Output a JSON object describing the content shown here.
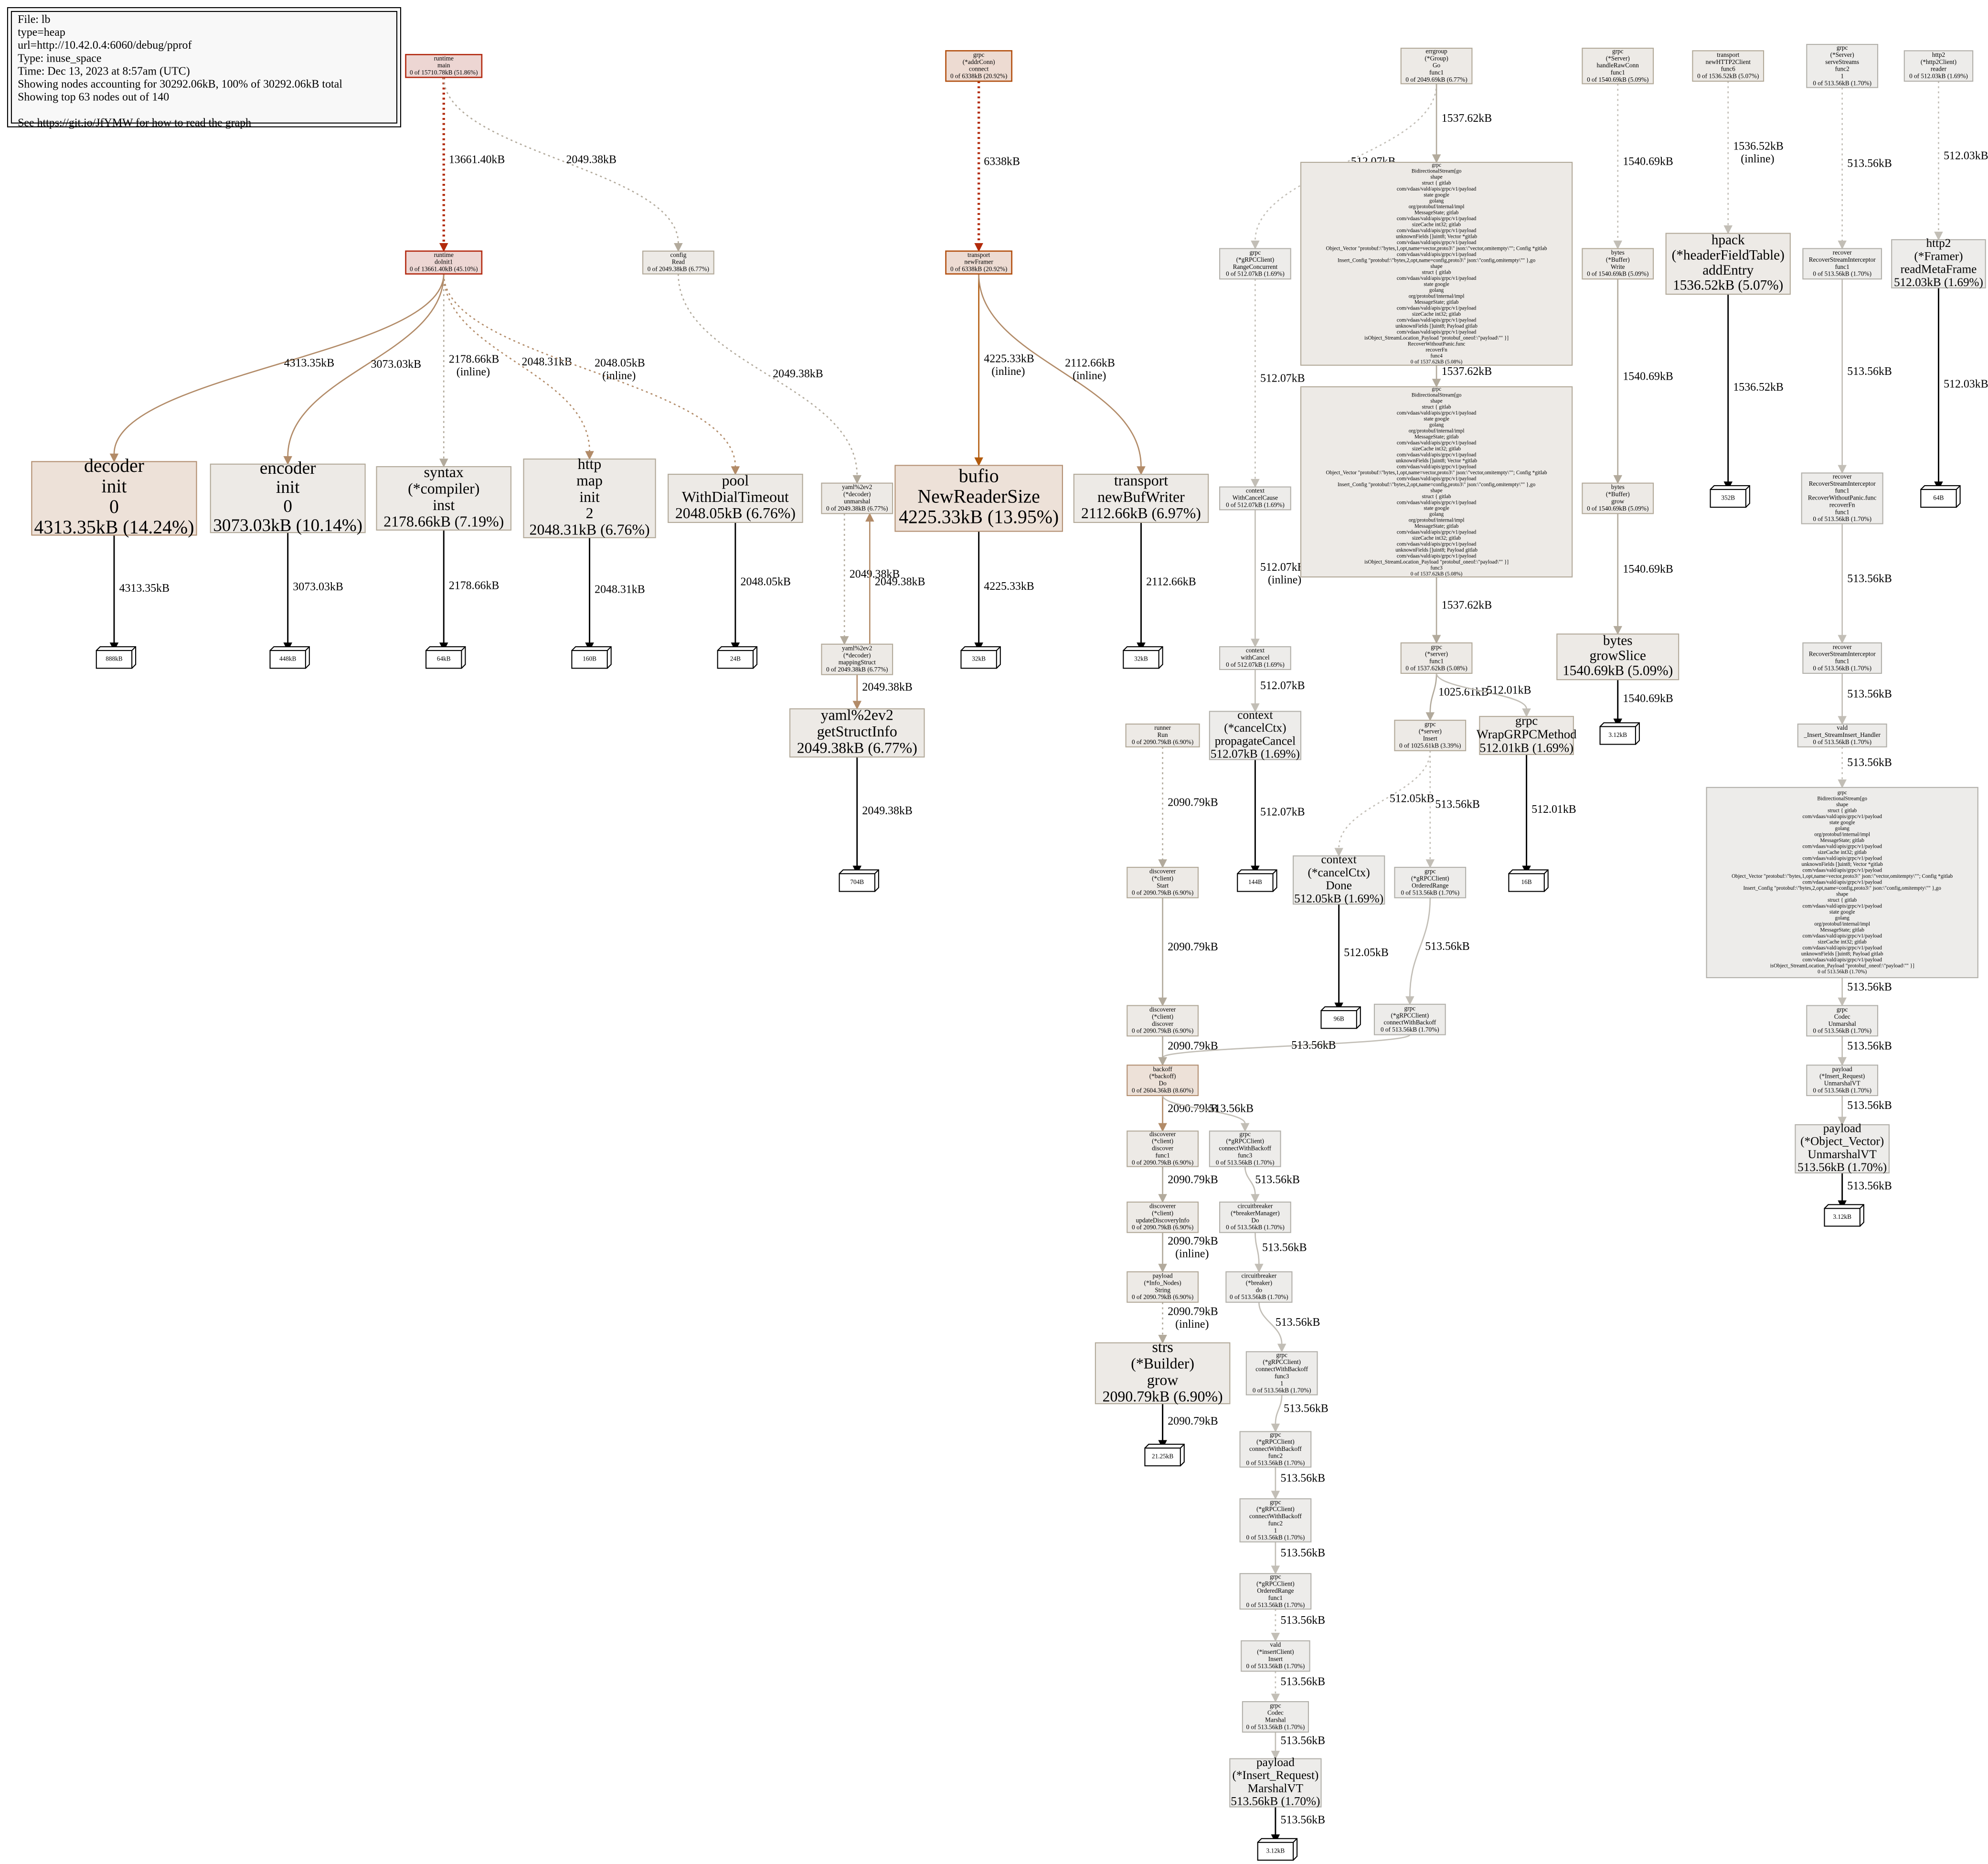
{
  "legend": {
    "lines": [
      "File: lb",
      "type=heap",
      "url=http://10.42.0.4:6060/debug/pprof",
      "Type: inuse_space",
      "Time: Dec 13, 2023 at 8:57am (UTC)",
      "Showing nodes accounting for 30292.06kB, 100% of 30292.06kB total",
      "Showing top 63 nodes out of 140",
      "See https://git.io/JfYMW for how to read the graph"
    ]
  },
  "nodes": [
    {
      "lines": [
        "runtime",
        "main",
        "0 of 15710.78kB (51.86%)"
      ]
    },
    {
      "lines": [
        "runtime",
        "doInit1",
        "0 of 13661.40kB (45.10%)"
      ]
    },
    {
      "lines": [
        "config",
        "Read",
        "0 of 2049.38kB (6.77%)"
      ]
    },
    {
      "lines": [
        "grpc",
        "(*addrConn)",
        "connect",
        "0 of 6338kB (20.92%)"
      ]
    },
    {
      "lines": [
        "transport",
        "newFramer",
        "0 of 6338kB (20.92%)"
      ]
    },
    {
      "lines": [
        "decoder",
        "init",
        "0",
        "4313.35kB (14.24%)"
      ]
    },
    {
      "lines": [
        "encoder",
        "init",
        "0",
        "3073.03kB (10.14%)"
      ]
    },
    {
      "lines": [
        "syntax",
        "(*compiler)",
        "inst",
        "2178.66kB (7.19%)"
      ]
    },
    {
      "lines": [
        "http",
        "map",
        "init",
        "2",
        "2048.31kB (6.76%)"
      ]
    },
    {
      "lines": [
        "pool",
        "WithDialTimeout",
        "2048.05kB (6.76%)"
      ]
    },
    {
      "lines": [
        "yaml%2ev2",
        "(*decoder)",
        "unmarshal",
        "0 of 2049.38kB (6.77%)"
      ]
    },
    {
      "lines": [
        "bufio",
        "NewReaderSize",
        "4225.33kB (13.95%)"
      ]
    },
    {
      "lines": [
        "transport",
        "newBufWriter",
        "2112.66kB (6.97%)"
      ]
    },
    {
      "lines": [
        "888kB"
      ]
    },
    {
      "lines": [
        "448kB"
      ]
    },
    {
      "lines": [
        "64kB"
      ]
    },
    {
      "lines": [
        "160B"
      ]
    },
    {
      "lines": [
        "24B"
      ]
    },
    {
      "lines": [
        "32kB"
      ]
    },
    {
      "lines": [
        "32kB"
      ]
    },
    {
      "lines": [
        "yaml%2ev2",
        "(*decoder)",
        "mappingStruct",
        "0 of 2049.38kB (6.77%)"
      ]
    },
    {
      "lines": [
        "yaml%2ev2",
        "getStructInfo",
        "2049.38kB (6.77%)"
      ]
    },
    {
      "lines": [
        "704B"
      ]
    },
    {
      "lines": [
        "errgroup",
        "(*Group)",
        "Go",
        "func1",
        "0 of 2049.69kB (6.77%)"
      ]
    },
    {
      "lines": [
        "grpc",
        "BidirectionalStream[go",
        "shape",
        "struct { gitlab",
        "com/vdaas/vald/apis/grpc/v1/payload",
        "state google",
        "golang",
        "org/protobuf/internal/impl",
        "MessageState; gitlab",
        "com/vdaas/vald/apis/grpc/v1/payload",
        "sizeCache int32; gitlab",
        "com/vdaas/vald/apis/grpc/v1/payload",
        "unknownFields []uint8; Vector *gitlab",
        "com/vdaas/vald/apis/grpc/v1/payload",
        "Object_Vector \"protobuf:\\\"bytes,1,opt,name=vector,proto3\\\" json:\\\"vector,omitempty\\\"\"; Config *gitlab",
        "com/vdaas/vald/apis/grpc/v1/payload",
        "Insert_Config \"protobuf:\\\"bytes,2,opt,name=config,proto3\\\" json:\\\"config,omitempty\\\"\" },go",
        "shape",
        "struct { gitlab",
        "com/vdaas/vald/apis/grpc/v1/payload",
        "state google",
        "golang",
        "org/protobuf/internal/impl",
        "MessageState; gitlab",
        "com/vdaas/vald/apis/grpc/v1/payload",
        "sizeCache int32; gitlab",
        "com/vdaas/vald/apis/grpc/v1/payload",
        "unknownFields []uint8; Payload gitlab",
        "com/vdaas/vald/apis/grpc/v1/payload",
        "isObject_StreamLocation_Payload \"protobuf_oneof:\\\"payload\\\"\" }]",
        "RecoverWithoutPanic.func",
        "recoverFn",
        "func4",
        "0 of 1537.62kB (5.08%)"
      ]
    },
    {
      "lines": [
        "grpc",
        "BidirectionalStream[go",
        "shape",
        "struct { gitlab",
        "com/vdaas/vald/apis/grpc/v1/payload",
        "state google",
        "golang",
        "org/protobuf/internal/impl",
        "MessageState; gitlab",
        "com/vdaas/vald/apis/grpc/v1/payload",
        "sizeCache int32; gitlab",
        "com/vdaas/vald/apis/grpc/v1/payload",
        "unknownFields []uint8; Vector *gitlab",
        "com/vdaas/vald/apis/grpc/v1/payload",
        "Object_Vector \"protobuf:\\\"bytes,1,opt,name=vector,proto3\\\" json:\\\"vector,omitempty\\\"\"; Config *gitlab",
        "com/vdaas/vald/apis/grpc/v1/payload",
        "Insert_Config \"protobuf:\\\"bytes,2,opt,name=config,proto3\\\" json:\\\"config,omitempty\\\"\" },go",
        "shape",
        "struct { gitlab",
        "com/vdaas/vald/apis/grpc/v1/payload",
        "state google",
        "golang",
        "org/protobuf/internal/impl",
        "MessageState; gitlab",
        "com/vdaas/vald/apis/grpc/v1/payload",
        "sizeCache int32; gitlab",
        "com/vdaas/vald/apis/grpc/v1/payload",
        "unknownFields []uint8; Payload gitlab",
        "com/vdaas/vald/apis/grpc/v1/payload",
        "isObject_StreamLocation_Payload \"protobuf_oneof:\\\"payload\\\"\" }]",
        "func3",
        "0 of 1537.62kB (5.08%)"
      ]
    },
    {
      "lines": [
        "grpc",
        "(*server)",
        "func1",
        "0 of 1537.62kB (5.08%)"
      ]
    },
    {
      "lines": [
        "grpc",
        "(*server)",
        "Insert",
        "0 of 1025.61kB (3.39%)"
      ]
    },
    {
      "lines": [
        "grpc",
        "WrapGRPCMethod",
        "512.01kB (1.69%)"
      ]
    },
    {
      "lines": [
        "16B"
      ]
    },
    {
      "lines": [
        "context",
        "(*cancelCtx)",
        "Done",
        "512.05kB (1.69%)"
      ]
    },
    {
      "lines": [
        "grpc",
        "(*gRPCClient)",
        "OrderedRange",
        "0 of 513.56kB (1.70%)"
      ]
    },
    {
      "lines": [
        "96B"
      ]
    },
    {
      "lines": [
        "grpc",
        "(*gRPCClient)",
        "connectWithBackoff",
        "0 of 513.56kB (1.70%)"
      ]
    },
    {
      "lines": [
        "grpc",
        "(*gRPCClient)",
        "RangeConcurrent",
        "0 of 512.07kB (1.69%)"
      ]
    },
    {
      "lines": [
        "context",
        "WithCancelCause",
        "0 of 512.07kB (1.69%)"
      ]
    },
    {
      "lines": [
        "context",
        "withCancel",
        "0 of 512.07kB (1.69%)"
      ]
    },
    {
      "lines": [
        "context",
        "(*cancelCtx)",
        "propagateCancel",
        "512.07kB (1.69%)"
      ]
    },
    {
      "lines": [
        "144B"
      ]
    },
    {
      "lines": [
        "runner",
        "Run",
        "0 of 2090.79kB (6.90%)"
      ]
    },
    {
      "lines": [
        "discoverer",
        "(*client)",
        "Start",
        "0 of 2090.79kB (6.90%)"
      ]
    },
    {
      "lines": [
        "discoverer",
        "(*client)",
        "discover",
        "0 of 2090.79kB (6.90%)"
      ]
    },
    {
      "lines": [
        "backoff",
        "(*backoff)",
        "Do",
        "0 of 2604.36kB (8.60%)"
      ]
    },
    {
      "lines": [
        "discoverer",
        "(*client)",
        "discover",
        "func1",
        "0 of 2090.79kB (6.90%)"
      ]
    },
    {
      "lines": [
        "grpc",
        "(*gRPCClient)",
        "connectWithBackoff",
        "func3",
        "0 of 513.56kB (1.70%)"
      ]
    },
    {
      "lines": [
        "discoverer",
        "(*client)",
        "updateDiscoveryInfo",
        "0 of 2090.79kB (6.90%)"
      ]
    },
    {
      "lines": [
        "circuitbreaker",
        "(*breakerManager)",
        "Do",
        "0 of 513.56kB (1.70%)"
      ]
    },
    {
      "lines": [
        "payload",
        "(*Info_Nodes)",
        "String",
        "0 of 2090.79kB (6.90%)"
      ]
    },
    {
      "lines": [
        "circuitbreaker",
        "(*breaker)",
        "do",
        "0 of 513.56kB (1.70%)"
      ]
    },
    {
      "lines": [
        "strs",
        "(*Builder)",
        "grow",
        "2090.79kB (6.90%)"
      ]
    },
    {
      "lines": [
        "21.25kB"
      ]
    },
    {
      "lines": [
        "grpc",
        "(*gRPCClient)",
        "connectWithBackoff",
        "func3",
        "1",
        "0 of 513.56kB (1.70%)"
      ]
    },
    {
      "lines": [
        "grpc",
        "(*gRPCClient)",
        "connectWithBackoff",
        "func2",
        "0 of 513.56kB (1.70%)"
      ]
    },
    {
      "lines": [
        "grpc",
        "(*gRPCClient)",
        "connectWithBackoff",
        "func2",
        "1",
        "0 of 513.56kB (1.70%)"
      ]
    },
    {
      "lines": [
        "grpc",
        "(*gRPCClient)",
        "OrderedRange",
        "func1",
        "0 of 513.56kB (1.70%)"
      ]
    },
    {
      "lines": [
        "vald",
        "(*insertClient)",
        "Insert",
        "0 of 513.56kB (1.70%)"
      ]
    },
    {
      "lines": [
        "grpc",
        "Codec",
        "Marshal",
        "0 of 513.56kB (1.70%)"
      ]
    },
    {
      "lines": [
        "payload",
        "(*Insert_Request)",
        "MarshalVT",
        "513.56kB (1.70%)"
      ]
    },
    {
      "lines": [
        "3.12kB"
      ]
    },
    {
      "lines": [
        "grpc",
        "(*Server)",
        "handleRawConn",
        "func1",
        "0 of 1540.69kB (5.09%)"
      ]
    },
    {
      "lines": [
        "bytes",
        "(*Buffer)",
        "Write",
        "0 of 1540.69kB (5.09%)"
      ]
    },
    {
      "lines": [
        "bytes",
        "(*Buffer)",
        "grow",
        "0 of 1540.69kB (5.09%)"
      ]
    },
    {
      "lines": [
        "bytes",
        "growSlice",
        "1540.69kB (5.09%)"
      ]
    },
    {
      "lines": [
        "3.12kB"
      ]
    },
    {
      "lines": [
        "transport",
        "newHTTP2Client",
        "func6",
        "0 of 1536.52kB (5.07%)"
      ]
    },
    {
      "lines": [
        "hpack",
        "(*headerFieldTable)",
        "addEntry",
        "1536.52kB (5.07%)"
      ]
    },
    {
      "lines": [
        "352B"
      ]
    },
    {
      "lines": [
        "grpc",
        "(*Server)",
        "serveStreams",
        "func2",
        "1",
        "0 of 513.56kB (1.70%)"
      ]
    },
    {
      "lines": [
        "recover",
        "RecoverStreamInterceptor",
        "func1",
        "0 of 513.56kB (1.70%)"
      ]
    },
    {
      "lines": [
        "recover",
        "RecoverStreamInterceptor",
        "func1",
        "RecoverWithoutPanic.func",
        "recoverFn",
        "func1",
        "0 of 513.56kB (1.70%)"
      ]
    },
    {
      "lines": [
        "recover",
        "RecoverStreamInterceptor",
        "func1",
        "0 of 513.56kB (1.70%)"
      ]
    },
    {
      "lines": [
        "vald",
        "_Insert_StreamInsert_Handler",
        "0 of 513.56kB (1.70%)"
      ]
    },
    {
      "lines": [
        "grpc",
        "BidirectionalStream[go",
        "shape",
        "struct { gitlab",
        "com/vdaas/vald/apis/grpc/v1/payload",
        "state google",
        "golang",
        "org/protobuf/internal/impl",
        "MessageState; gitlab",
        "com/vdaas/vald/apis/grpc/v1/payload",
        "sizeCache int32; gitlab",
        "com/vdaas/vald/apis/grpc/v1/payload",
        "unknownFields []uint8; Vector *gitlab",
        "com/vdaas/vald/apis/grpc/v1/payload",
        "Object_Vector \"protobuf:\\\"bytes,1,opt,name=vector,proto3\\\" json:\\\"vector,omitempty\\\"\"; Config *gitlab",
        "com/vdaas/vald/apis/grpc/v1/payload",
        "Insert_Config \"protobuf:\\\"bytes,2,opt,name=config,proto3\\\" json:\\\"config,omitempty\\\"\" },go",
        "shape",
        "struct { gitlab",
        "com/vdaas/vald/apis/grpc/v1/payload",
        "state google",
        "golang",
        "org/protobuf/internal/impl",
        "MessageState; gitlab",
        "com/vdaas/vald/apis/grpc/v1/payload",
        "sizeCache int32; gitlab",
        "com/vdaas/vald/apis/grpc/v1/payload",
        "unknownFields []uint8; Payload gitlab",
        "com/vdaas/vald/apis/grpc/v1/payload",
        "isObject_StreamLocation_Payload \"protobuf_oneof:\\\"payload\\\"\" }]",
        "0 of 513.56kB (1.70%)"
      ]
    },
    {
      "lines": [
        "grpc",
        "Codec",
        "Unmarshal",
        "0 of 513.56kB (1.70%)"
      ]
    },
    {
      "lines": [
        "payload",
        "(*Insert_Request)",
        "UnmarshalVT",
        "0 of 513.56kB (1.70%)"
      ]
    },
    {
      "lines": [
        "payload",
        "(*Object_Vector)",
        "UnmarshalVT",
        "513.56kB (1.70%)"
      ]
    },
    {
      "lines": [
        "3.12kB"
      ]
    },
    {
      "lines": [
        "http2",
        "(*http2Client)",
        "reader",
        "0 of 512.03kB (1.69%)"
      ]
    },
    {
      "lines": [
        "http2",
        "(*Framer)",
        "readMetaFrame",
        "512.03kB (1.69%)"
      ]
    },
    {
      "lines": [
        "64B"
      ]
    }
  ],
  "edges": [
    {
      "label": [
        "13661.40kB"
      ]
    },
    {
      "label": [
        "2049.38kB"
      ]
    },
    {
      "label": [
        "4313.35kB"
      ]
    },
    {
      "label": [
        "3073.03kB"
      ]
    },
    {
      "label": [
        "2178.66kB",
        "(inline)"
      ]
    },
    {
      "label": [
        "2048.31kB"
      ]
    },
    {
      "label": [
        "2048.05kB",
        "(inline)"
      ]
    },
    {
      "label": [
        "2049.38kB"
      ]
    },
    {
      "label": [
        "2049.38kB"
      ]
    },
    {
      "label": [
        "2049.38kB"
      ]
    },
    {
      "label": [
        "2049.38kB"
      ]
    },
    {
      "label": [
        "2049.38kB"
      ]
    },
    {
      "label": [
        "4313.35kB"
      ]
    },
    {
      "label": [
        "3073.03kB"
      ]
    },
    {
      "label": [
        "2178.66kB"
      ]
    },
    {
      "label": [
        "2048.31kB"
      ]
    },
    {
      "label": [
        "2048.05kB"
      ]
    },
    {
      "label": [
        "4225.33kB"
      ]
    },
    {
      "label": [
        "2112.66kB"
      ]
    },
    {
      "label": [
        "6338kB"
      ]
    },
    {
      "label": [
        "4225.33kB",
        "(inline)"
      ]
    },
    {
      "label": [
        "2112.66kB",
        "(inline)"
      ]
    },
    {
      "label": [
        "512.07kB"
      ]
    },
    {
      "label": [
        "1537.62kB"
      ]
    },
    {
      "label": [
        "1537.62kB"
      ]
    },
    {
      "label": [
        "1537.62kB"
      ]
    },
    {
      "label": [
        "1025.61kB"
      ]
    },
    {
      "label": [
        "512.01kB"
      ]
    },
    {
      "label": [
        "512.01kB"
      ]
    },
    {
      "label": [
        "512.05kB"
      ]
    },
    {
      "label": [
        "513.56kB"
      ]
    },
    {
      "label": [
        "512.05kB"
      ]
    },
    {
      "label": [
        "513.56kB"
      ]
    },
    {
      "label": [
        "513.56kB"
      ]
    },
    {
      "label": [
        "512.07kB"
      ]
    },
    {
      "label": [
        "512.07kB",
        "(inline)"
      ]
    },
    {
      "label": [
        "512.07kB"
      ]
    },
    {
      "label": [
        "512.07kB"
      ]
    },
    {
      "label": [
        "2090.79kB"
      ]
    },
    {
      "label": [
        "2090.79kB"
      ]
    },
    {
      "label": [
        "2090.79kB"
      ]
    },
    {
      "label": [
        "2090.79kB"
      ]
    },
    {
      "label": [
        "513.56kB"
      ]
    },
    {
      "label": [
        "2090.79kB"
      ]
    },
    {
      "label": [
        "513.56kB"
      ]
    },
    {
      "label": [
        "2090.79kB",
        "(inline)"
      ]
    },
    {
      "label": [
        "513.56kB"
      ]
    },
    {
      "label": [
        "2090.79kB",
        "(inline)"
      ]
    },
    {
      "label": [
        "513.56kB"
      ]
    },
    {
      "label": [
        "2090.79kB"
      ]
    },
    {
      "label": [
        "513.56kB"
      ]
    },
    {
      "label": [
        "513.56kB"
      ]
    },
    {
      "label": [
        "513.56kB"
      ]
    },
    {
      "label": [
        "513.56kB"
      ]
    },
    {
      "label": [
        "513.56kB"
      ]
    },
    {
      "label": [
        "513.56kB"
      ]
    },
    {
      "label": [
        "513.56kB"
      ]
    },
    {
      "label": [
        "1540.69kB"
      ]
    },
    {
      "label": [
        "1540.69kB"
      ]
    },
    {
      "label": [
        "1540.69kB"
      ]
    },
    {
      "label": [
        "1540.69kB"
      ]
    },
    {
      "label": [
        "1536.52kB",
        "(inline)"
      ]
    },
    {
      "label": [
        "1536.52kB"
      ]
    },
    {
      "label": [
        "513.56kB"
      ]
    },
    {
      "label": [
        "513.56kB"
      ]
    },
    {
      "label": [
        "513.56kB"
      ]
    },
    {
      "label": [
        "513.56kB"
      ]
    },
    {
      "label": [
        "513.56kB"
      ]
    },
    {
      "label": [
        "513.56kB"
      ]
    },
    {
      "label": [
        "513.56kB"
      ]
    },
    {
      "label": [
        "513.56kB"
      ]
    },
    {
      "label": [
        "513.56kB"
      ]
    },
    {
      "label": [
        "512.03kB"
      ]
    },
    {
      "label": [
        "512.03kB"
      ]
    }
  ]
}
